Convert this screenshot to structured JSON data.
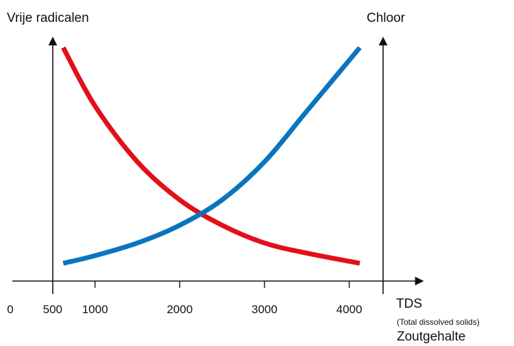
{
  "chart_data": {
    "type": "line",
    "left_axis_label": "Vrije radicalen",
    "right_axis_label": "Chloor",
    "x_tick_labels": [
      "0",
      "500",
      "1000",
      "2000",
      "3000",
      "4000"
    ],
    "x_ticks": [
      0,
      500,
      1000,
      2000,
      3000,
      4000
    ],
    "xlim": [
      0,
      4500
    ],
    "xlabel": "TDS",
    "xlabel_sub": "(Total dissolved solids)",
    "xlabel_2": "Zoutgehalte",
    "y_ticks_shown": false,
    "series": [
      {
        "color": "#e30f1b",
        "x": [
          625,
          1000,
          1500,
          2000,
          2500,
          3000,
          3500,
          4125
        ],
        "y": [
          0.92,
          0.69,
          0.47,
          0.32,
          0.22,
          0.15,
          0.11,
          0.07
        ]
      },
      {
        "color": "#0b74c0",
        "x": [
          625,
          1000,
          1500,
          2000,
          2500,
          3000,
          3500,
          4125
        ],
        "y": [
          0.07,
          0.1,
          0.15,
          0.22,
          0.32,
          0.47,
          0.67,
          0.92
        ]
      }
    ],
    "grid": false
  }
}
